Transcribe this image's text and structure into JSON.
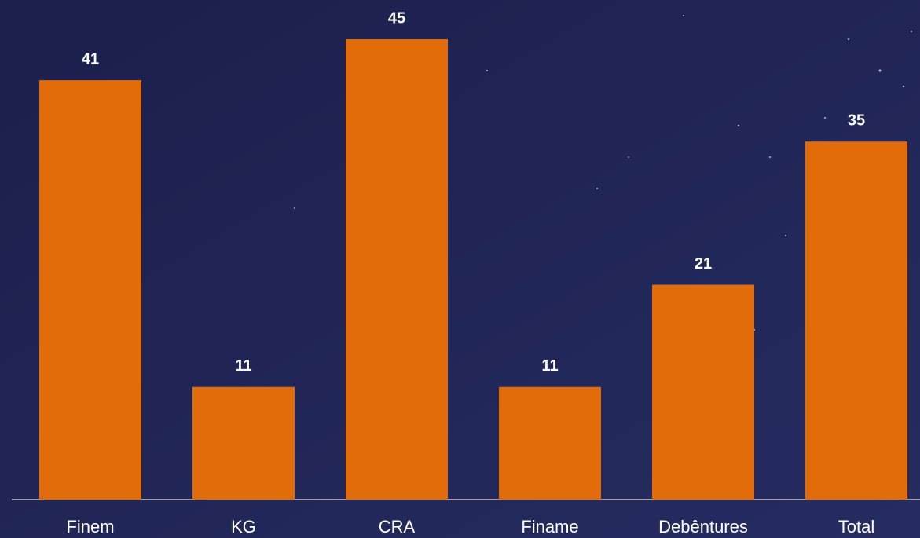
{
  "chart_data": {
    "type": "bar",
    "categories": [
      "Finem",
      "KG",
      "CRA",
      "Finame",
      "Debêntures",
      "Total"
    ],
    "values": [
      41,
      11,
      45,
      11,
      21,
      35
    ],
    "color": "#e36c0a"
  }
}
